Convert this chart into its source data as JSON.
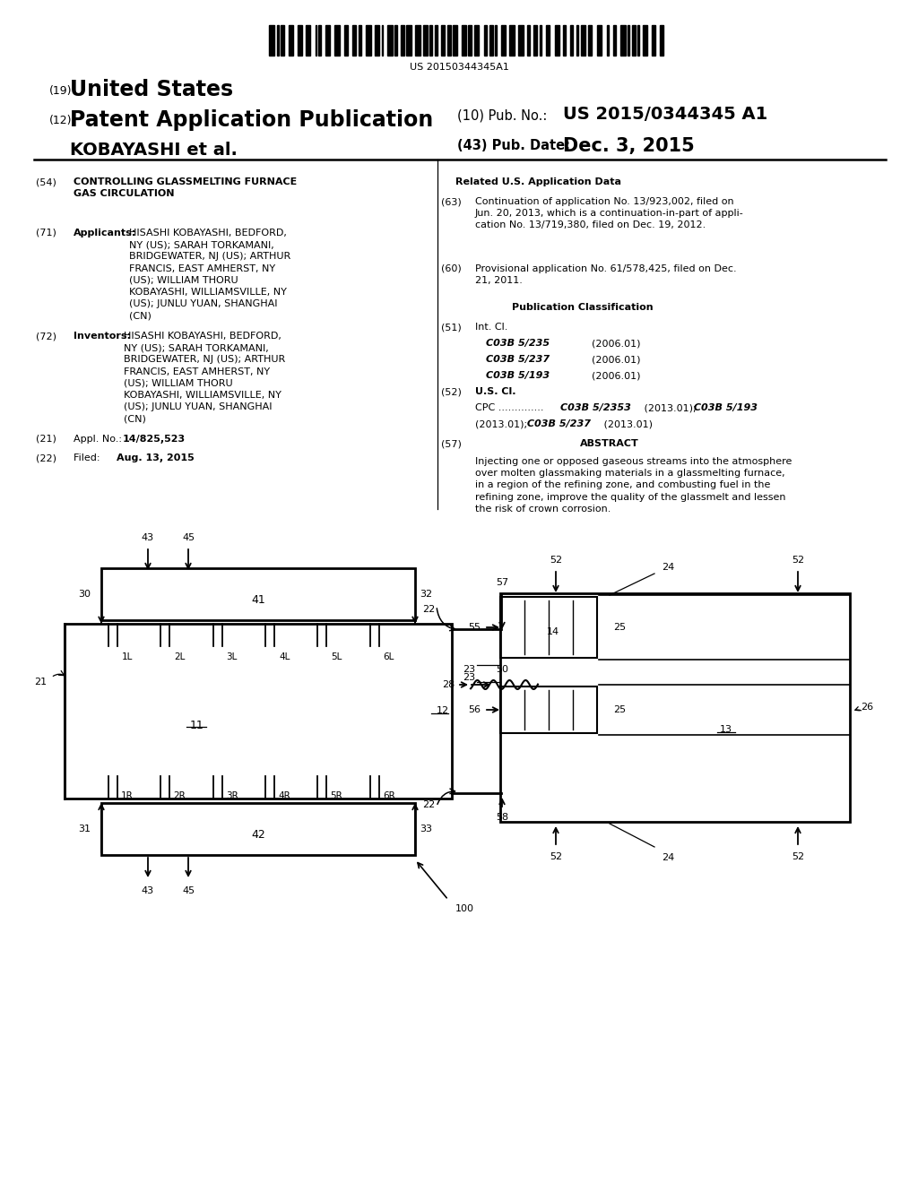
{
  "bg": "#ffffff",
  "barcode_text": "US 20150344345A1",
  "header": {
    "title19": "United States",
    "num19": "(19)",
    "title12": "Patent Application Publication",
    "num12": "(12)",
    "inventor": "KOBAYASHI et al.",
    "pub_no_label": "(10) Pub. No.:",
    "pub_no_value": "US 2015/0344345 A1",
    "pub_date_label": "(43) Pub. Date:",
    "pub_date_value": "Dec. 3, 2015"
  },
  "left": {
    "f54_num": "(54)",
    "f54_text": "CONTROLLING GLASSMELTING FURNACE\nGAS CIRCULATION",
    "f71_num": "(71)",
    "f71_label": "Applicants:",
    "f71_bold": "HISASHI KOBAYASHI",
    "f71_names": [
      "HISASHI KOBAYASHI",
      ", BEDFORD, NY (US); ",
      "SARAH TORKAMANI",
      ",\nBRIDGEWATER, NJ (US); ",
      "ARTHUR\nFRANCIS",
      ", EAST AMHERST, NY (US); ",
      "WILLIAM THORU\nKOBAYASHI",
      ", WILLIAMSVILLE, NY\n(US); ",
      "JUNLU YUAN",
      ", SHANGHAI (CN)"
    ],
    "f71_text_plain": "HISASHI KOBAYASHI, BEDFORD,\nNY (US); SARAH TORKAMANI,\nBRIDGEWATER, NJ (US); ARTHUR\nFRANCIS, EAST AMHERST, NY\n(US); WILLIAM THORU\nKOBAYASHI, WILLIAMSVILLE, NY\n(US); JUNLU YUAN, SHANGHAI\n(CN)",
    "f72_num": "(72)",
    "f72_label": "Inventors:",
    "f72_text_plain": "HISASHI KOBAYASHI, BEDFORD,\nNY (US); SARAH TORKAMANI,\nBRIDGEWATER, NJ (US); ARTHUR\nFRANCIS, EAST AMHERST, NY\n(US); WILLIAM THORU\nKOBAYASHI, WILLIAMSVILLE, NY\n(US); JUNLU YUAN, SHANGHAI\n(CN)",
    "f21_num": "(21)",
    "f21_appl": "Appl. No.:",
    "f21_val": "14/825,523",
    "f22_num": "(22)",
    "f22_text": "Filed:",
    "f22_val": "Aug. 13, 2015"
  },
  "right": {
    "related_header": "Related U.S. Application Data",
    "f63_num": "(63)",
    "f63_text": "Continuation of application No. 13/923,002, filed on\nJun. 20, 2013, which is a continuation-in-part of appli-\ncation No. 13/719,380, filed on Dec. 19, 2012.",
    "f60_num": "(60)",
    "f60_text": "Provisional application No. 61/578,425, filed on Dec.\n21, 2011.",
    "pubclass_header": "Publication Classification",
    "f51_num": "(51)",
    "f51_text": "Int. Cl.",
    "int_codes": [
      "C03B 5/235",
      "C03B 5/237",
      "C03B 5/193"
    ],
    "int_dates": [
      "(2006.01)",
      "(2006.01)",
      "(2006.01)"
    ],
    "f52_num": "(52)",
    "f52_text": "U.S. Cl.",
    "cpc_prefix": "CPC ..............",
    "cpc_code1": "C03B 5/2353",
    "cpc_date1": "(2013.01);",
    "cpc_code2": "C03B 5/193",
    "cpc_date2": "(2013.01);",
    "cpc_code3": "C03B 5/237",
    "cpc_date3": "(2013.01)",
    "f57_num": "(57)",
    "f57_title": "ABSTRACT",
    "f57_text": "Injecting one or opposed gaseous streams into the atmosphere\nover molten glassmaking materials in a glassmelting furnace,\nin a region of the refining zone, and combusting fuel in the\nrefining zone, improve the quality of the glassmelt and lessen\nthe risk of crown corrosion."
  }
}
